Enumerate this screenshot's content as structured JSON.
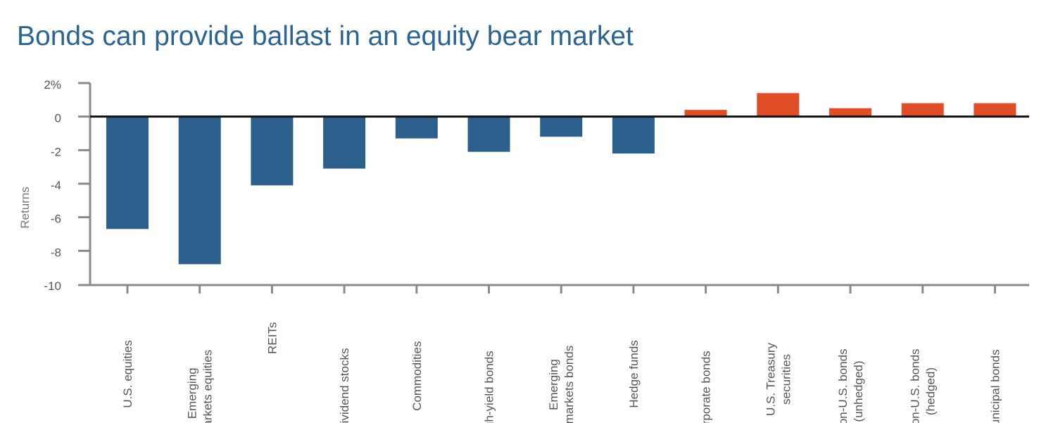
{
  "chart_data": {
    "type": "bar",
    "title": "Bonds can provide ballast in an equity bear market",
    "xlabel": "",
    "ylabel": "Returns",
    "ylim": [
      -10,
      2
    ],
    "yticks": [
      {
        "value": 2,
        "label": "2%"
      },
      {
        "value": 0,
        "label": "0"
      },
      {
        "value": -2,
        "label": "-2"
      },
      {
        "value": -4,
        "label": "-4"
      },
      {
        "value": -6,
        "label": "-6"
      },
      {
        "value": -8,
        "label": "-8"
      },
      {
        "value": -10,
        "label": "-10"
      }
    ],
    "categories": [
      {
        "lines": [
          "U.S. equities"
        ]
      },
      {
        "lines": [
          "Emerging",
          "markets equities"
        ]
      },
      {
        "lines": [
          "REITs"
        ]
      },
      {
        "lines": [
          "Dividend stocks"
        ]
      },
      {
        "lines": [
          "Commodities"
        ]
      },
      {
        "lines": [
          "High-yield bonds"
        ]
      },
      {
        "lines": [
          "Emerging",
          "markets bonds"
        ]
      },
      {
        "lines": [
          "Hedge funds"
        ]
      },
      {
        "lines": [
          "Corporate bonds"
        ]
      },
      {
        "lines": [
          "U.S. Treasury",
          "securities"
        ]
      },
      {
        "lines": [
          "Non-U.S. bonds",
          "(unhedged)"
        ]
      },
      {
        "lines": [
          "Non-U.S. bonds",
          "(hedged)"
        ]
      },
      {
        "lines": [
          "Municipal bonds"
        ]
      }
    ],
    "values": [
      -6.7,
      -8.8,
      -4.1,
      -3.1,
      -1.3,
      -2.1,
      -1.2,
      -2.2,
      0.4,
      1.4,
      0.5,
      0.8,
      0.8
    ],
    "grid": false,
    "legend": "none",
    "colors": {
      "negative": "#2b5f8c",
      "positive": "#e04e28",
      "axis": "#8a8a8a",
      "zero_line": "#111111"
    }
  }
}
